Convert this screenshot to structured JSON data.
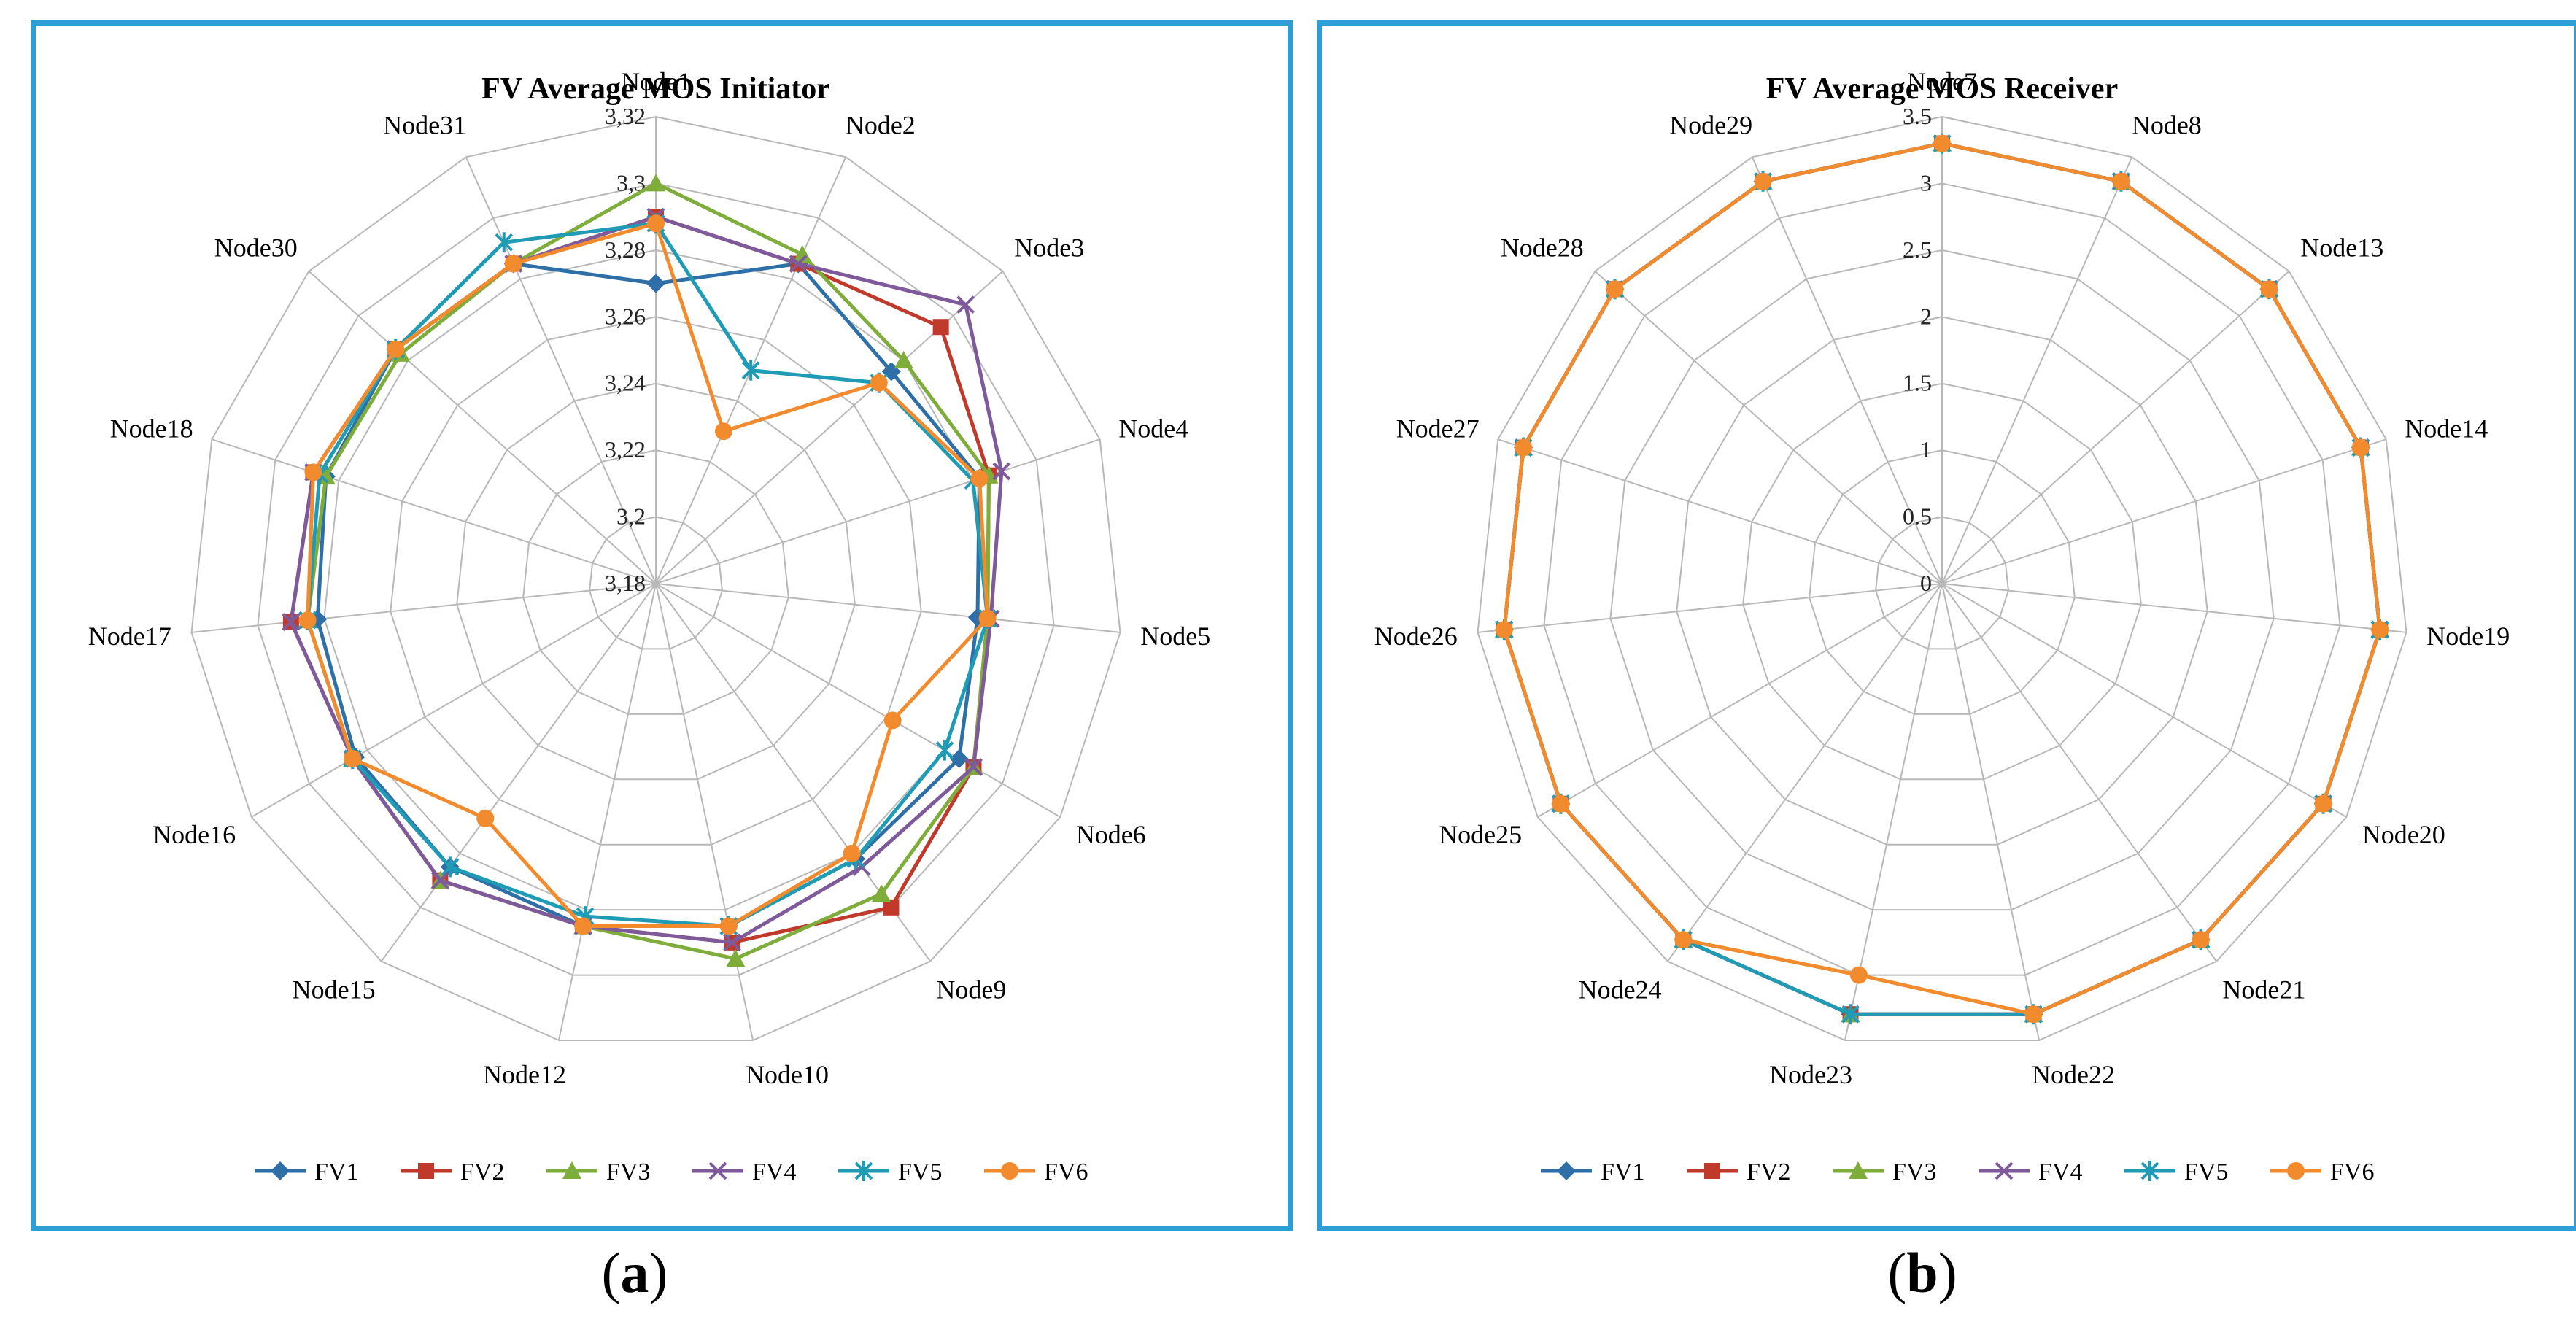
{
  "panels": [
    {
      "caption_letter": "a",
      "chart_data": {
        "type": "radar",
        "title": "FV Average MOS Initiator",
        "categories": [
          "Node1",
          "Node2",
          "Node3",
          "Node4",
          "Node5",
          "Node6",
          "Node9",
          "Node10",
          "Node12",
          "Node15",
          "Node16",
          "Node17",
          "Node18",
          "Node30",
          "Node31"
        ],
        "range": [
          3.18,
          3.32
        ],
        "ticks": [
          3.18,
          3.2,
          3.22,
          3.24,
          3.26,
          3.28,
          3.3,
          3.32
        ],
        "tick_labels": [
          "3,18",
          "3,2",
          "3,22",
          "3,24",
          "3,26",
          "3,28",
          "3,3",
          "3,32"
        ],
        "legend_position": "bottom",
        "series": [
          {
            "name": "FV1",
            "values": [
              3.27,
              3.285,
              3.275,
              3.282,
              3.277,
              3.285,
              3.282,
              3.285,
              3.285,
              3.285,
              3.284,
              3.282,
              3.284,
              3.285,
              3.285
            ]
          },
          {
            "name": "FV2",
            "values": [
              3.29,
              3.285,
              3.295,
              3.285,
              3.28,
              3.29,
              3.3,
              3.29,
              3.285,
              3.29,
              3.285,
              3.29,
              3.288,
              3.285,
              3.285
            ]
          },
          {
            "name": "FV3",
            "values": [
              3.3,
              3.288,
              3.28,
              3.285,
              3.28,
              3.29,
              3.295,
              3.295,
              3.285,
              3.29,
              3.285,
              3.285,
              3.284,
              3.283,
              3.285
            ]
          },
          {
            "name": "FV4",
            "values": [
              3.29,
              3.285,
              3.305,
              3.289,
              3.281,
              3.29,
              3.285,
              3.29,
              3.285,
              3.29,
              3.285,
              3.29,
              3.288,
              3.285,
              3.285
            ]
          },
          {
            "name": "FV5",
            "values": [
              3.288,
              3.25,
              3.27,
              3.28,
              3.28,
              3.28,
              3.282,
              3.285,
              3.282,
              3.285,
              3.285,
              3.285,
              3.286,
              3.285,
              3.292
            ]
          },
          {
            "name": "FV6",
            "values": [
              3.288,
              3.23,
              3.27,
              3.282,
              3.28,
              3.262,
              3.28,
              3.285,
              3.285,
              3.267,
              3.285,
              3.285,
              3.288,
              3.285,
              3.285
            ]
          }
        ]
      }
    },
    {
      "caption_letter": "b",
      "chart_data": {
        "type": "radar",
        "title": "FV Average MOS Receiver",
        "categories": [
          "Node7",
          "Node8",
          "Node13",
          "Node14",
          "Node19",
          "Node20",
          "Node21",
          "Node22",
          "Node23",
          "Node24",
          "Node25",
          "Node26",
          "Node27",
          "Node28",
          "Node29"
        ],
        "range": [
          0,
          3.5
        ],
        "ticks": [
          0,
          0.5,
          1,
          1.5,
          2,
          2.5,
          3,
          3.5
        ],
        "tick_labels": [
          "0",
          "0.5",
          "1",
          "1.5",
          "2",
          "2.5",
          "3",
          "3.5"
        ],
        "legend_position": "bottom",
        "series": [
          {
            "name": "FV1",
            "values": [
              3.3,
              3.3,
              3.3,
              3.3,
              3.3,
              3.3,
              3.3,
              3.3,
              3.3,
              3.3,
              3.3,
              3.3,
              3.3,
              3.3,
              3.3
            ]
          },
          {
            "name": "FV2",
            "values": [
              3.3,
              3.3,
              3.3,
              3.3,
              3.3,
              3.3,
              3.3,
              3.3,
              3.3,
              3.3,
              3.3,
              3.3,
              3.3,
              3.3,
              3.3
            ]
          },
          {
            "name": "FV3",
            "values": [
              3.3,
              3.3,
              3.3,
              3.3,
              3.3,
              3.3,
              3.3,
              3.3,
              3.3,
              3.3,
              3.3,
              3.3,
              3.3,
              3.3,
              3.3
            ]
          },
          {
            "name": "FV4",
            "values": [
              3.3,
              3.3,
              3.3,
              3.3,
              3.3,
              3.3,
              3.3,
              3.3,
              3.3,
              3.3,
              3.3,
              3.3,
              3.3,
              3.3,
              3.3
            ]
          },
          {
            "name": "FV5",
            "values": [
              3.3,
              3.3,
              3.3,
              3.3,
              3.3,
              3.3,
              3.3,
              3.3,
              3.3,
              3.3,
              3.3,
              3.3,
              3.3,
              3.3,
              3.3
            ]
          },
          {
            "name": "FV6",
            "values": [
              3.3,
              3.3,
              3.3,
              3.3,
              3.3,
              3.3,
              3.3,
              3.3,
              3.0,
              3.3,
              3.3,
              3.3,
              3.3,
              3.3,
              3.3
            ]
          }
        ]
      }
    }
  ],
  "series_styles": {
    "FV1": {
      "color": "#2e6fa8",
      "marker": "diamond"
    },
    "FV2": {
      "color": "#c0392b",
      "marker": "square"
    },
    "FV3": {
      "color": "#7fad3b",
      "marker": "triangle"
    },
    "FV4": {
      "color": "#7e5a9b",
      "marker": "x"
    },
    "FV5": {
      "color": "#1f9bb5",
      "marker": "asterisk"
    },
    "FV6": {
      "color": "#f28a2e",
      "marker": "circle"
    }
  }
}
